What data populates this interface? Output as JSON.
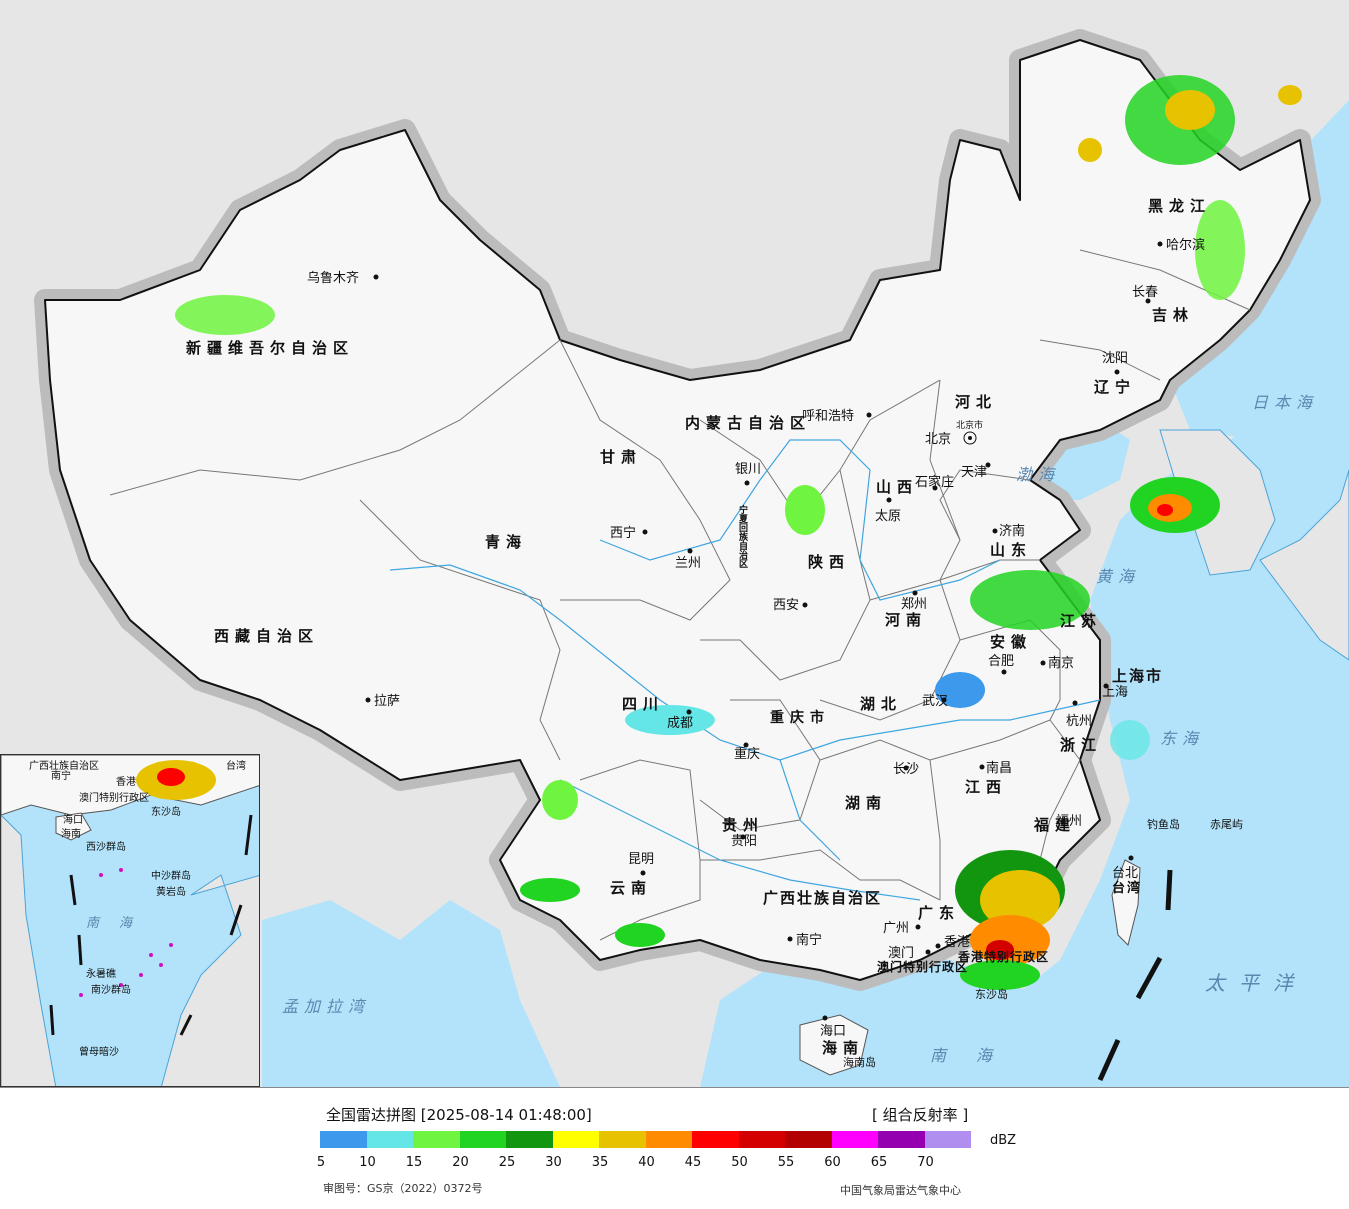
{
  "header": {
    "title": "全国雷达拼图 [2025-08-14 01:48:00]",
    "product": "[ 组合反射率 ]",
    "unit": "dBZ"
  },
  "legend": {
    "colors": [
      "#3d99ec",
      "#65e6e6",
      "#6ff540",
      "#22d422",
      "#12960f",
      "#ffff00",
      "#e6c200",
      "#ff8c00",
      "#ff0000",
      "#d40000",
      "#b30000",
      "#ff00ff",
      "#9400b0",
      "#b08ef0"
    ],
    "ticks": [
      "5",
      "10",
      "15",
      "20",
      "25",
      "30",
      "35",
      "40",
      "45",
      "50",
      "55",
      "60",
      "65",
      "70"
    ]
  },
  "footer": {
    "approval": "审图号：GS京（2022）0372号",
    "source": "中国气象局雷达气象中心"
  },
  "map": {
    "provinces": [
      {
        "name": "新疆维吾尔自治区"
      },
      {
        "name": "西藏自治区"
      },
      {
        "name": "青海"
      },
      {
        "name": "甘肃"
      },
      {
        "name": "内蒙古自治区"
      },
      {
        "name": "黑龙江"
      },
      {
        "name": "吉林"
      },
      {
        "name": "辽宁"
      },
      {
        "name": "河北"
      },
      {
        "name": "山西"
      },
      {
        "name": "陕西"
      },
      {
        "name": "山东"
      },
      {
        "name": "河南"
      },
      {
        "name": "江苏"
      },
      {
        "name": "安徽"
      },
      {
        "name": "湖北"
      },
      {
        "name": "四川"
      },
      {
        "name": "重庆市"
      },
      {
        "name": "湖南"
      },
      {
        "name": "江西"
      },
      {
        "name": "浙江"
      },
      {
        "name": "福建"
      },
      {
        "name": "贵州"
      },
      {
        "name": "云南"
      },
      {
        "name": "广西壮族自治区"
      },
      {
        "name": "广东"
      },
      {
        "name": "海南"
      },
      {
        "name": "台湾"
      },
      {
        "name": "上海市"
      },
      {
        "name": "天津"
      },
      {
        "name": "宁夏回族自治区"
      },
      {
        "name": "香港特别行政区"
      },
      {
        "name": "澳门特别行政区"
      }
    ],
    "cities": [
      {
        "name": "乌鲁木齐"
      },
      {
        "name": "哈尔滨"
      },
      {
        "name": "长春"
      },
      {
        "name": "沈阳"
      },
      {
        "name": "呼和浩特"
      },
      {
        "name": "北京"
      },
      {
        "name": "北京市"
      },
      {
        "name": "天津"
      },
      {
        "name": "石家庄"
      },
      {
        "name": "太原"
      },
      {
        "name": "济南"
      },
      {
        "name": "银川"
      },
      {
        "name": "西宁"
      },
      {
        "name": "兰州"
      },
      {
        "name": "西安"
      },
      {
        "name": "郑州"
      },
      {
        "name": "合肥"
      },
      {
        "name": "南京"
      },
      {
        "name": "上海"
      },
      {
        "name": "杭州"
      },
      {
        "name": "武汉"
      },
      {
        "name": "成都"
      },
      {
        "name": "重庆"
      },
      {
        "name": "拉萨"
      },
      {
        "name": "长沙"
      },
      {
        "name": "南昌"
      },
      {
        "name": "福州"
      },
      {
        "name": "台北"
      },
      {
        "name": "贵阳"
      },
      {
        "name": "昆明"
      },
      {
        "name": "南宁"
      },
      {
        "name": "广州"
      },
      {
        "name": "香港"
      },
      {
        "name": "澳门"
      },
      {
        "name": "海口"
      }
    ],
    "seas": [
      {
        "name": "日本海"
      },
      {
        "name": "渤海"
      },
      {
        "name": "黄海"
      },
      {
        "name": "东海"
      },
      {
        "name": "太平洋"
      },
      {
        "name": "南海"
      },
      {
        "name": "孟加拉湾"
      }
    ],
    "islands": [
      {
        "name": "钓鱼岛"
      },
      {
        "name": "赤尾屿"
      },
      {
        "name": "东沙岛"
      },
      {
        "name": "海南岛"
      }
    ],
    "inset": {
      "labels": [
        "广西壮族自治区",
        "南宁",
        "台湾",
        "香港",
        "澳门特别行政区",
        "东沙岛",
        "海口",
        "海南",
        "西沙群岛",
        "中沙群岛",
        "黄岩岛",
        "南海",
        "永暑礁",
        "南沙群岛",
        "曾母暗沙"
      ]
    }
  }
}
